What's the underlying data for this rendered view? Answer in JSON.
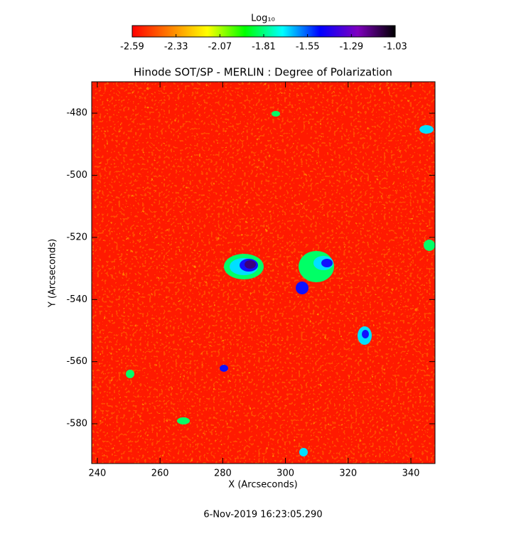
{
  "chart_data": {
    "type": "image",
    "title": "Hinode SOT/SP - MERLIN : Degree of Polarization",
    "x_label": "X (Arcseconds)",
    "y_label": "Y (Arcseconds)",
    "xlim": [
      238.2,
      347.7
    ],
    "xticks": [
      240,
      260,
      280,
      300,
      320,
      340
    ],
    "ylim": [
      -592.8,
      -469.9
    ],
    "yticks": [
      -480,
      -500,
      -520,
      -540,
      -560,
      -580
    ],
    "colorbar_label": "Log₁₀",
    "clim": [
      -2.59,
      -1.03
    ],
    "cticks": [
      -2.59,
      -2.33,
      -2.07,
      -1.81,
      -1.55,
      -1.29,
      -1.03
    ],
    "colormap": [
      "#ff0000",
      "#ff7f00",
      "#ffff00",
      "#00ff00",
      "#00ffff",
      "#0000ff",
      "#7f00bf",
      "#000000"
    ],
    "footer": "6-Nov-2019 16:23:05.290"
  }
}
